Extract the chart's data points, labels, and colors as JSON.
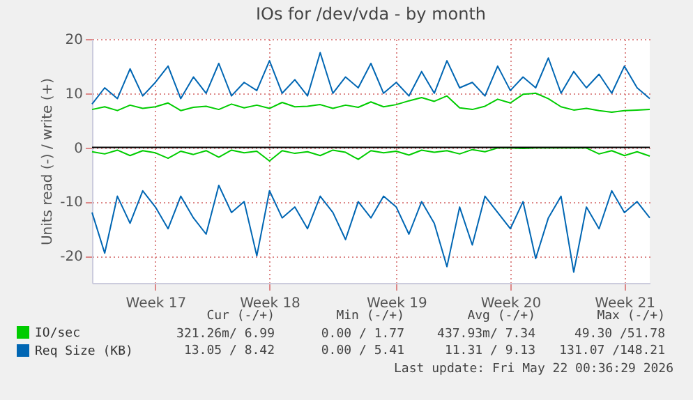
{
  "chart_data": {
    "type": "line",
    "title": "IOs for /dev/vda - by month",
    "ylabel": "Units read (-) / write (+)",
    "categories": [
      null,
      null,
      null,
      null,
      null,
      "Week 17",
      null,
      null,
      null,
      null,
      null,
      null,
      null,
      null,
      "Week 18",
      null,
      null,
      null,
      null,
      null,
      null,
      null,
      null,
      null,
      "Week 19",
      null,
      null,
      null,
      null,
      null,
      null,
      null,
      null,
      "Week 20",
      null,
      null,
      null,
      null,
      null,
      null,
      null,
      null,
      "Week 21",
      null,
      null
    ],
    "series": [
      {
        "name": "IO/sec",
        "color": "#00cc00",
        "values": [
          7,
          7.5,
          6.8,
          7.8,
          7.2,
          7.5,
          8.2,
          6.8,
          7.4,
          7.6,
          7,
          8,
          7.3,
          7.8,
          7.2,
          8.3,
          7.5,
          7.6,
          7.9,
          7.2,
          7.8,
          7.4,
          8.4,
          7.5,
          7.9,
          8.6,
          9.2,
          8.5,
          9.5,
          7.3,
          7,
          7.6,
          8.9,
          8.2,
          9.8,
          10,
          9,
          7.5,
          6.9,
          7.2,
          6.8,
          6.5,
          6.8,
          6.9,
          7
        ]
      },
      {
        "color": "#00cc00",
        "values": [
          -0.8,
          -1.2,
          -0.5,
          -1.5,
          -0.6,
          -1,
          -2,
          -0.7,
          -1.3,
          -0.6,
          -1.8,
          -0.5,
          -1,
          -0.7,
          -2.5,
          -0.6,
          -1.1,
          -0.8,
          -1.5,
          -0.5,
          -0.9,
          -2.2,
          -0.6,
          -1,
          -0.7,
          -1.4,
          -0.5,
          -0.9,
          -0.6,
          -1.2,
          -0.4,
          -0.8,
          -0.1,
          -0.1,
          -0.2,
          -0.1,
          -0.1,
          -0.1,
          -0.1,
          -0.1,
          -1.2,
          -0.6,
          -1.5,
          -0.8,
          -1.6
        ]
      },
      {
        "name": "Req Size (KB)",
        "color": "#0066b3",
        "values": [
          8,
          11,
          9,
          14.5,
          9.5,
          12,
          15,
          9,
          13,
          10,
          15.5,
          9.5,
          12,
          10.5,
          16,
          10,
          12.5,
          9.5,
          17.5,
          10,
          13,
          11,
          15.5,
          10,
          12,
          9.5,
          14,
          10,
          16,
          11,
          12,
          9.5,
          15,
          10.5,
          13,
          11,
          16.5,
          10,
          14,
          11,
          13.5,
          10,
          15,
          11,
          9
        ]
      },
      {
        "color": "#0066b3",
        "values": [
          -12,
          -19.5,
          -9,
          -14,
          -8,
          -11,
          -15,
          -9,
          -13,
          -16,
          -7,
          -12,
          -10,
          -20,
          -8,
          -13,
          -11,
          -15,
          -9,
          -12,
          -17,
          -10,
          -13,
          -9,
          -11,
          -16,
          -10,
          -14,
          -22,
          -11,
          -18,
          -9,
          -12,
          -15,
          -10,
          -20.5,
          -13,
          -9,
          -23,
          -11,
          -15,
          -8,
          -12,
          -10,
          -13
        ]
      }
    ],
    "ylim": [
      -25,
      20
    ],
    "yticks": [
      -20,
      -10,
      0,
      10,
      20
    ],
    "grid": true,
    "legend": "bottom left",
    "ref_lines": [
      {
        "axis": "y",
        "value": 0,
        "color": "#000000"
      }
    ],
    "annotations": [
      "Cur (-/+)",
      "Min (-/+)",
      "Avg (-/+)",
      "Max (-/+)",
      "321.26m/ 6.99",
      "0.00 / 1.77",
      "437.93m/ 7.34",
      "49.30 /51.78",
      "13.05 / 8.42",
      "0.00 / 5.41",
      "11.31 / 9.13",
      "131.07 /148.21",
      "Last update: Fri May 22 00:36:29 2026"
    ]
  }
}
